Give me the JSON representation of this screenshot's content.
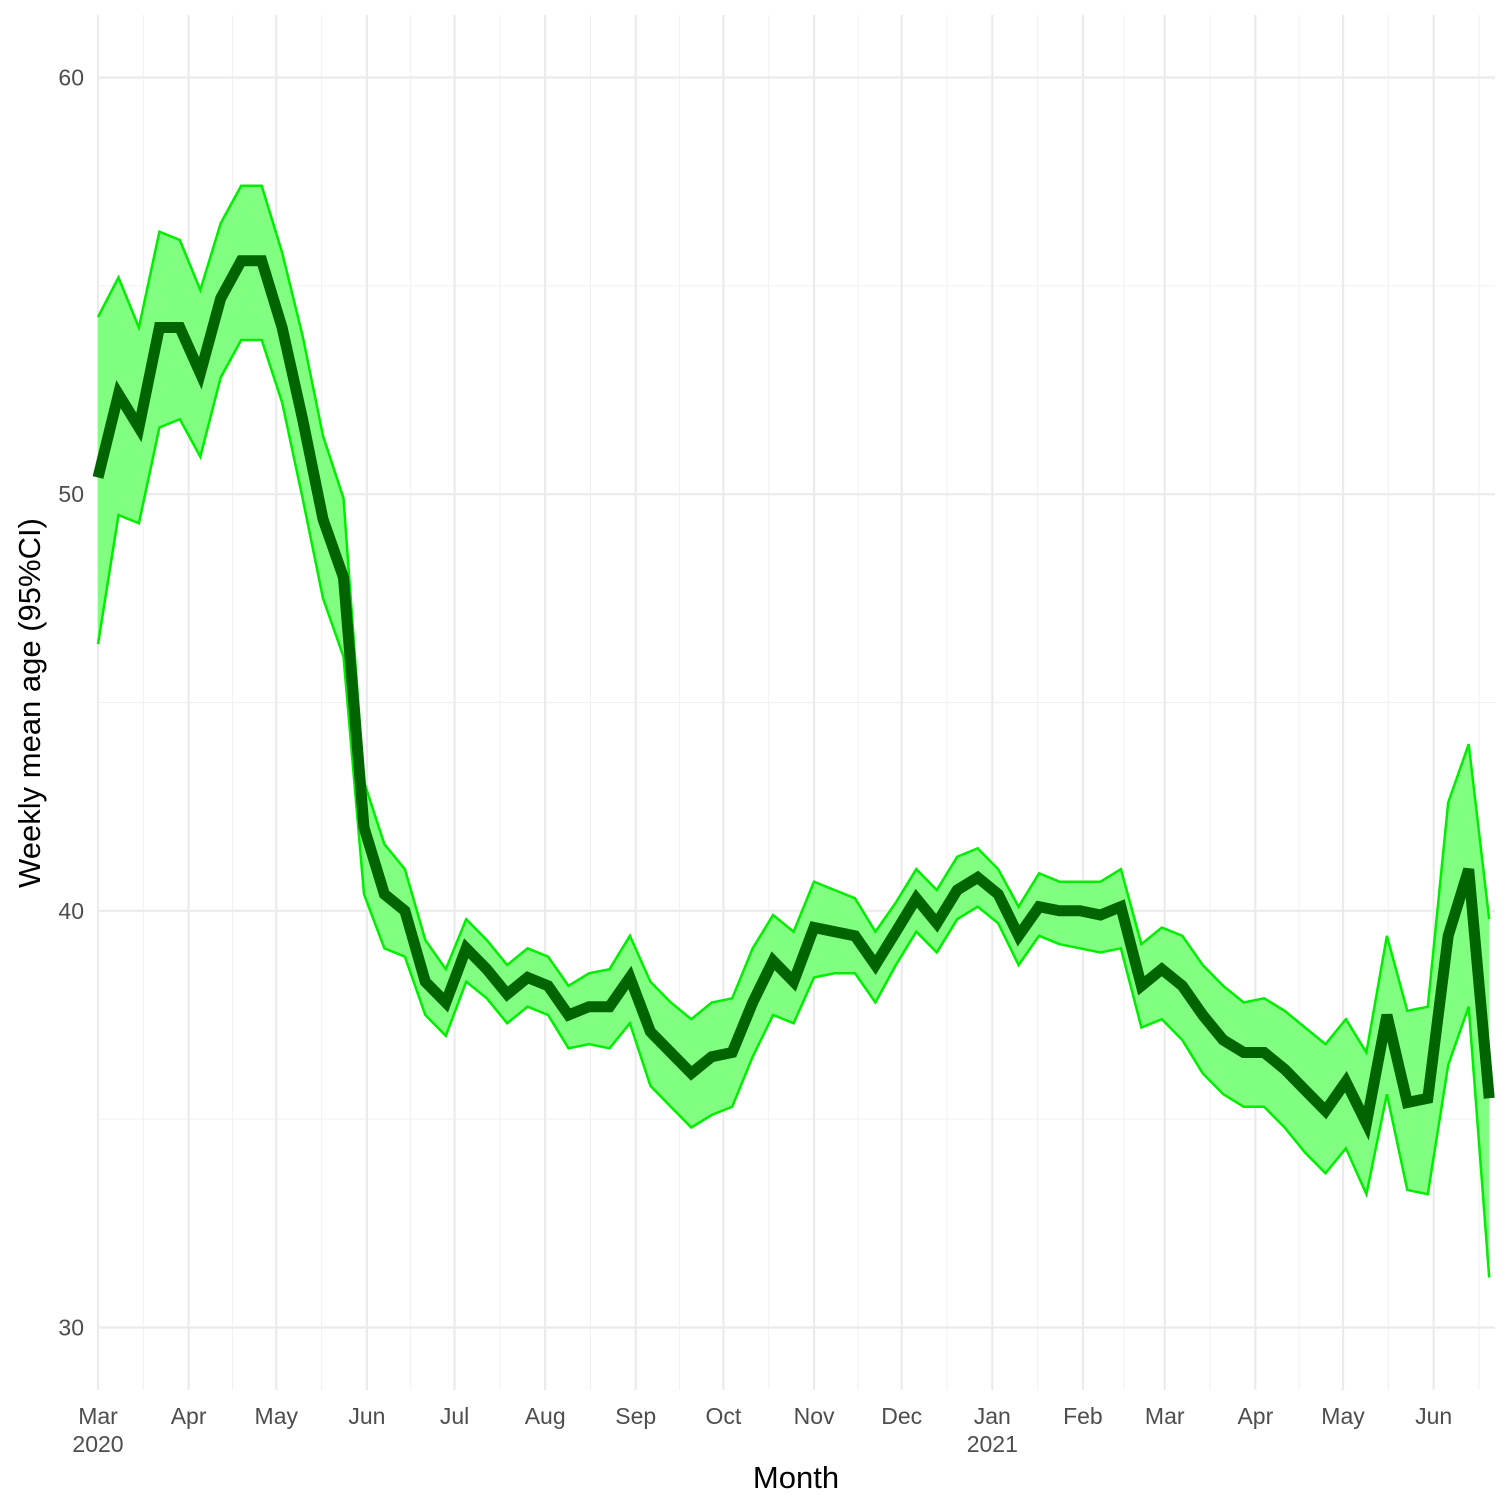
{
  "chart_data": {
    "type": "line",
    "x_label": "Month",
    "y_label": "Weekly mean age (95%CI)",
    "x": [
      "2020-03-01",
      "2020-03-08",
      "2020-03-15",
      "2020-03-22",
      "2020-03-29",
      "2020-04-05",
      "2020-04-12",
      "2020-04-19",
      "2020-04-26",
      "2020-05-03",
      "2020-05-10",
      "2020-05-17",
      "2020-05-24",
      "2020-05-31",
      "2020-06-07",
      "2020-06-14",
      "2020-06-21",
      "2020-06-28",
      "2020-07-05",
      "2020-07-12",
      "2020-07-19",
      "2020-07-26",
      "2020-08-02",
      "2020-08-09",
      "2020-08-16",
      "2020-08-23",
      "2020-08-30",
      "2020-09-06",
      "2020-09-13",
      "2020-09-20",
      "2020-09-27",
      "2020-10-04",
      "2020-10-11",
      "2020-10-18",
      "2020-10-25",
      "2020-11-01",
      "2020-11-08",
      "2020-11-15",
      "2020-11-22",
      "2020-11-29",
      "2020-12-06",
      "2020-12-13",
      "2020-12-20",
      "2020-12-27",
      "2021-01-03",
      "2021-01-10",
      "2021-01-17",
      "2021-01-24",
      "2021-01-31",
      "2021-02-07",
      "2021-02-14",
      "2021-02-21",
      "2021-02-28",
      "2021-03-07",
      "2021-03-14",
      "2021-03-21",
      "2021-03-28",
      "2021-04-04",
      "2021-04-11",
      "2021-04-18",
      "2021-04-25",
      "2021-05-02",
      "2021-05-09",
      "2021-05-16",
      "2021-05-23",
      "2021-05-30",
      "2021-06-06",
      "2021-06-13",
      "2021-06-20"
    ],
    "values": [
      50.4,
      52.4,
      51.6,
      54.0,
      54.0,
      52.9,
      54.7,
      55.6,
      55.6,
      54.0,
      51.8,
      49.4,
      48.0,
      42.0,
      40.4,
      40.0,
      38.3,
      37.8,
      39.1,
      38.6,
      38.0,
      38.4,
      38.2,
      37.5,
      37.7,
      37.7,
      38.4,
      37.1,
      36.6,
      36.1,
      36.5,
      36.6,
      37.8,
      38.8,
      38.3,
      39.6,
      39.5,
      39.4,
      38.7,
      39.5,
      40.3,
      39.7,
      40.5,
      40.8,
      40.4,
      39.4,
      40.1,
      40.0,
      40.0,
      39.9,
      40.1,
      38.2,
      38.6,
      38.2,
      37.5,
      36.9,
      36.6,
      36.6,
      36.2,
      35.7,
      35.2,
      35.9,
      34.9,
      37.5,
      35.4,
      35.5,
      39.4,
      41.0,
      35.5
    ],
    "upper": [
      54.25,
      55.2,
      54.0,
      56.3,
      56.1,
      54.9,
      56.5,
      57.4,
      57.4,
      55.8,
      53.8,
      51.4,
      49.9,
      43.1,
      41.6,
      41.0,
      39.3,
      38.6,
      39.8,
      39.3,
      38.7,
      39.1,
      38.9,
      38.2,
      38.5,
      38.6,
      39.4,
      38.3,
      37.8,
      37.4,
      37.8,
      37.9,
      39.1,
      39.9,
      39.5,
      40.7,
      40.5,
      40.3,
      39.5,
      40.2,
      41.0,
      40.5,
      41.3,
      41.5,
      41.0,
      40.1,
      40.9,
      40.7,
      40.7,
      40.7,
      41.0,
      39.2,
      39.6,
      39.4,
      38.7,
      38.2,
      37.8,
      37.9,
      37.6,
      37.2,
      36.8,
      37.4,
      36.6,
      39.4,
      37.6,
      37.7,
      42.6,
      44.0,
      39.8
    ],
    "lower": [
      46.4,
      49.5,
      49.3,
      51.6,
      51.8,
      50.9,
      52.8,
      53.7,
      53.7,
      52.2,
      49.9,
      47.5,
      46.1,
      40.4,
      39.1,
      38.9,
      37.5,
      37.0,
      38.3,
      37.9,
      37.3,
      37.7,
      37.5,
      36.7,
      36.8,
      36.7,
      37.3,
      35.8,
      35.3,
      34.8,
      35.1,
      35.3,
      36.5,
      37.5,
      37.3,
      38.4,
      38.5,
      38.5,
      37.8,
      38.7,
      39.5,
      39.0,
      39.8,
      40.1,
      39.7,
      38.7,
      39.4,
      39.2,
      39.1,
      39.0,
      39.1,
      37.2,
      37.4,
      36.9,
      36.1,
      35.6,
      35.3,
      35.3,
      34.8,
      34.2,
      33.7,
      34.3,
      33.2,
      35.6,
      33.3,
      33.2,
      36.3,
      37.7,
      31.2
    ],
    "color": "#006400",
    "band_color": "#80ff80",
    "band_edge_color": "#00ee00",
    "xlim": [
      "2020-03-01",
      "2021-06-22"
    ],
    "xticks": [
      {
        "value": "2020-03-01",
        "label": "Mar\n2020"
      },
      {
        "value": "2020-04-01",
        "label": "Apr"
      },
      {
        "value": "2020-05-01",
        "label": "May"
      },
      {
        "value": "2020-06-01",
        "label": "Jun"
      },
      {
        "value": "2020-07-01",
        "label": "Jul"
      },
      {
        "value": "2020-08-01",
        "label": "Aug"
      },
      {
        "value": "2020-09-01",
        "label": "Sep"
      },
      {
        "value": "2020-10-01",
        "label": "Oct"
      },
      {
        "value": "2020-11-01",
        "label": "Nov"
      },
      {
        "value": "2020-12-01",
        "label": "Dec"
      },
      {
        "value": "2021-01-01",
        "label": "Jan\n2021"
      },
      {
        "value": "2021-02-01",
        "label": "Feb"
      },
      {
        "value": "2021-03-01",
        "label": "Mar"
      },
      {
        "value": "2021-04-01",
        "label": "Apr"
      },
      {
        "value": "2021-05-01",
        "label": "May"
      },
      {
        "value": "2021-06-01",
        "label": "Jun"
      }
    ],
    "ylim": [
      28.5,
      61.5
    ],
    "yticks": [
      30,
      40,
      50,
      60
    ],
    "grid": true
  }
}
